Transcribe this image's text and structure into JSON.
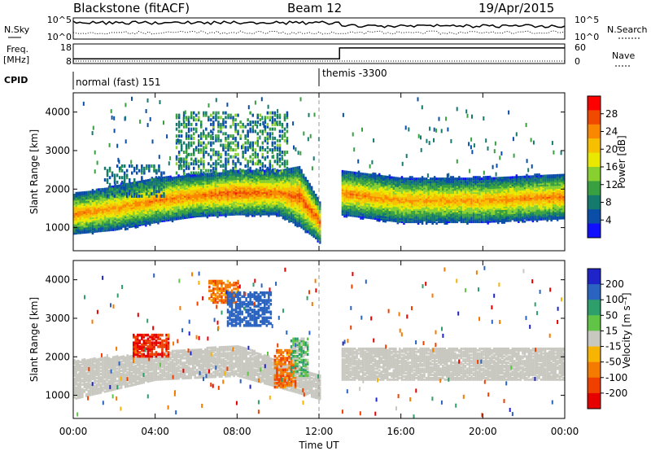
{
  "header": {
    "station": "Blackstone (fitACF)",
    "beam": "Beam 12",
    "date": "19/Apr/2015"
  },
  "status_panels": {
    "noise_label": "N.Sky",
    "noise_search_label": "N.Search",
    "noise_ticks": [
      "10^5",
      "10^0"
    ],
    "freq_label_1": "Freq.",
    "freq_label_2": "[MHz]",
    "freq_ticks": [
      "18",
      "8"
    ],
    "nave_label": "Nave",
    "nave_ticks": [
      "60",
      "0"
    ],
    "cpid_label": "CPID",
    "cpid_segments": [
      {
        "start_hour": 0,
        "end_hour": 12.0,
        "label": "normal (fast) 151"
      },
      {
        "start_hour": 12.0,
        "end_hour": 24,
        "label": "themis -3300"
      }
    ],
    "freq_step": {
      "before_mhz": 10.0,
      "after_mhz": 17.0,
      "at_hour": 13.0
    },
    "nave_level": {
      "before": 0,
      "after": 0
    }
  },
  "x_axis": {
    "label": "Time UT",
    "ticks": [
      "00:00",
      "04:00",
      "08:00",
      "12:00",
      "16:00",
      "20:00",
      "00:00"
    ],
    "range_hours": [
      0,
      24
    ]
  },
  "y_axis": {
    "label": "Slant Range [km]",
    "ticks": [
      "1000",
      "2000",
      "3000",
      "4000"
    ],
    "range_km": [
      400,
      4500
    ]
  },
  "power_colorbar": {
    "label": "Power [dB]",
    "ticks": [
      "28",
      "24",
      "20",
      "16",
      "12",
      "8",
      "4"
    ],
    "colors": [
      "#ff0000",
      "#f04a00",
      "#f98800",
      "#f6c000",
      "#e8e800",
      "#88d030",
      "#38a040",
      "#157a6e",
      "#0a4ea8",
      "#1010ff"
    ]
  },
  "velocity_colorbar": {
    "label": "Velocity [m s⁻¹]",
    "ticks": [
      "200",
      "100",
      "50",
      "15",
      "-15",
      "-50",
      "-100",
      "-200"
    ],
    "colors": [
      "#1f24c8",
      "#2a64c0",
      "#2e9e6a",
      "#62c446",
      "#c8c8c0",
      "#f7b400",
      "#f47a00",
      "#f04000",
      "#e60000"
    ]
  },
  "chart_data": [
    {
      "type": "heatmap",
      "title": "Power",
      "xlabel": "Time UT",
      "ylabel": "Slant Range [km]",
      "xlim_hours": [
        0,
        24
      ],
      "ylim_km": [
        400,
        4500
      ],
      "colorbar_label": "Power [dB]",
      "colorbar_range_db": [
        0,
        32
      ],
      "data_gap_hours": [
        12.0,
        13.0
      ],
      "main_band": [
        {
          "hour": 0,
          "low_km": 1000,
          "high_km": 1700,
          "peak_db": 26
        },
        {
          "hour": 2,
          "low_km": 1100,
          "high_km": 1900,
          "peak_db": 24
        },
        {
          "hour": 4,
          "low_km": 1300,
          "high_km": 2100,
          "peak_db": 26
        },
        {
          "hour": 6,
          "low_km": 1450,
          "high_km": 2200,
          "peak_db": 26
        },
        {
          "hour": 8,
          "low_km": 1500,
          "high_km": 2300,
          "peak_db": 28
        },
        {
          "hour": 10,
          "low_km": 1500,
          "high_km": 2300,
          "peak_db": 26
        },
        {
          "hour": 11,
          "low_km": 1200,
          "high_km": 2400,
          "peak_db": 28
        },
        {
          "hour": 12,
          "low_km": 800,
          "high_km": 1500,
          "peak_db": 28
        },
        {
          "hour": 13,
          "low_km": 1500,
          "high_km": 2300,
          "peak_db": 26
        },
        {
          "hour": 16,
          "low_km": 1300,
          "high_km": 2100,
          "peak_db": 24
        },
        {
          "hour": 20,
          "low_km": 1300,
          "high_km": 2100,
          "peak_db": 24
        },
        {
          "hour": 24,
          "low_km": 1400,
          "high_km": 2200,
          "peak_db": 26
        }
      ],
      "upper_patches": [
        {
          "start_hour": 5.0,
          "end_hour": 10.5,
          "low_km": 2400,
          "high_km": 4000,
          "peak_db": 12
        },
        {
          "start_hour": 1.5,
          "end_hour": 4.5,
          "low_km": 1800,
          "high_km": 2600,
          "peak_db": 8
        }
      ]
    },
    {
      "type": "heatmap",
      "title": "Velocity",
      "xlabel": "Time UT",
      "ylabel": "Slant Range [km]",
      "xlim_hours": [
        0,
        24
      ],
      "ylim_km": [
        400,
        4500
      ],
      "colorbar_label": "Velocity [m s⁻¹]",
      "colorbar_range_ms": [
        -250,
        250
      ],
      "data_gap_hours": [
        12.0,
        13.0
      ],
      "ground_scatter_band": [
        {
          "hour": 0,
          "low_km": 900,
          "high_km": 1900
        },
        {
          "hour": 4,
          "low_km": 1400,
          "high_km": 2100
        },
        {
          "hour": 8,
          "low_km": 1500,
          "high_km": 2300
        },
        {
          "hour": 12,
          "low_km": 900,
          "high_km": 1500
        },
        {
          "hour": 13,
          "low_km": 1400,
          "high_km": 2200
        },
        {
          "hour": 24,
          "low_km": 1400,
          "high_km": 2200
        }
      ],
      "patches": [
        {
          "start_hour": 2.9,
          "end_hour": 4.6,
          "low_km": 2000,
          "high_km": 2600,
          "velocity_ms": -200
        },
        {
          "start_hour": 6.6,
          "end_hour": 8.0,
          "low_km": 3400,
          "high_km": 4000,
          "velocity_ms": -80
        },
        {
          "start_hour": 7.5,
          "end_hour": 9.6,
          "low_km": 2800,
          "high_km": 3700,
          "velocity_ms": 150
        },
        {
          "start_hour": 9.8,
          "end_hour": 10.8,
          "low_km": 1200,
          "high_km": 2200,
          "velocity_ms": -90
        },
        {
          "start_hour": 10.6,
          "end_hour": 11.4,
          "low_km": 1500,
          "high_km": 2500,
          "velocity_ms": 40
        }
      ]
    }
  ]
}
